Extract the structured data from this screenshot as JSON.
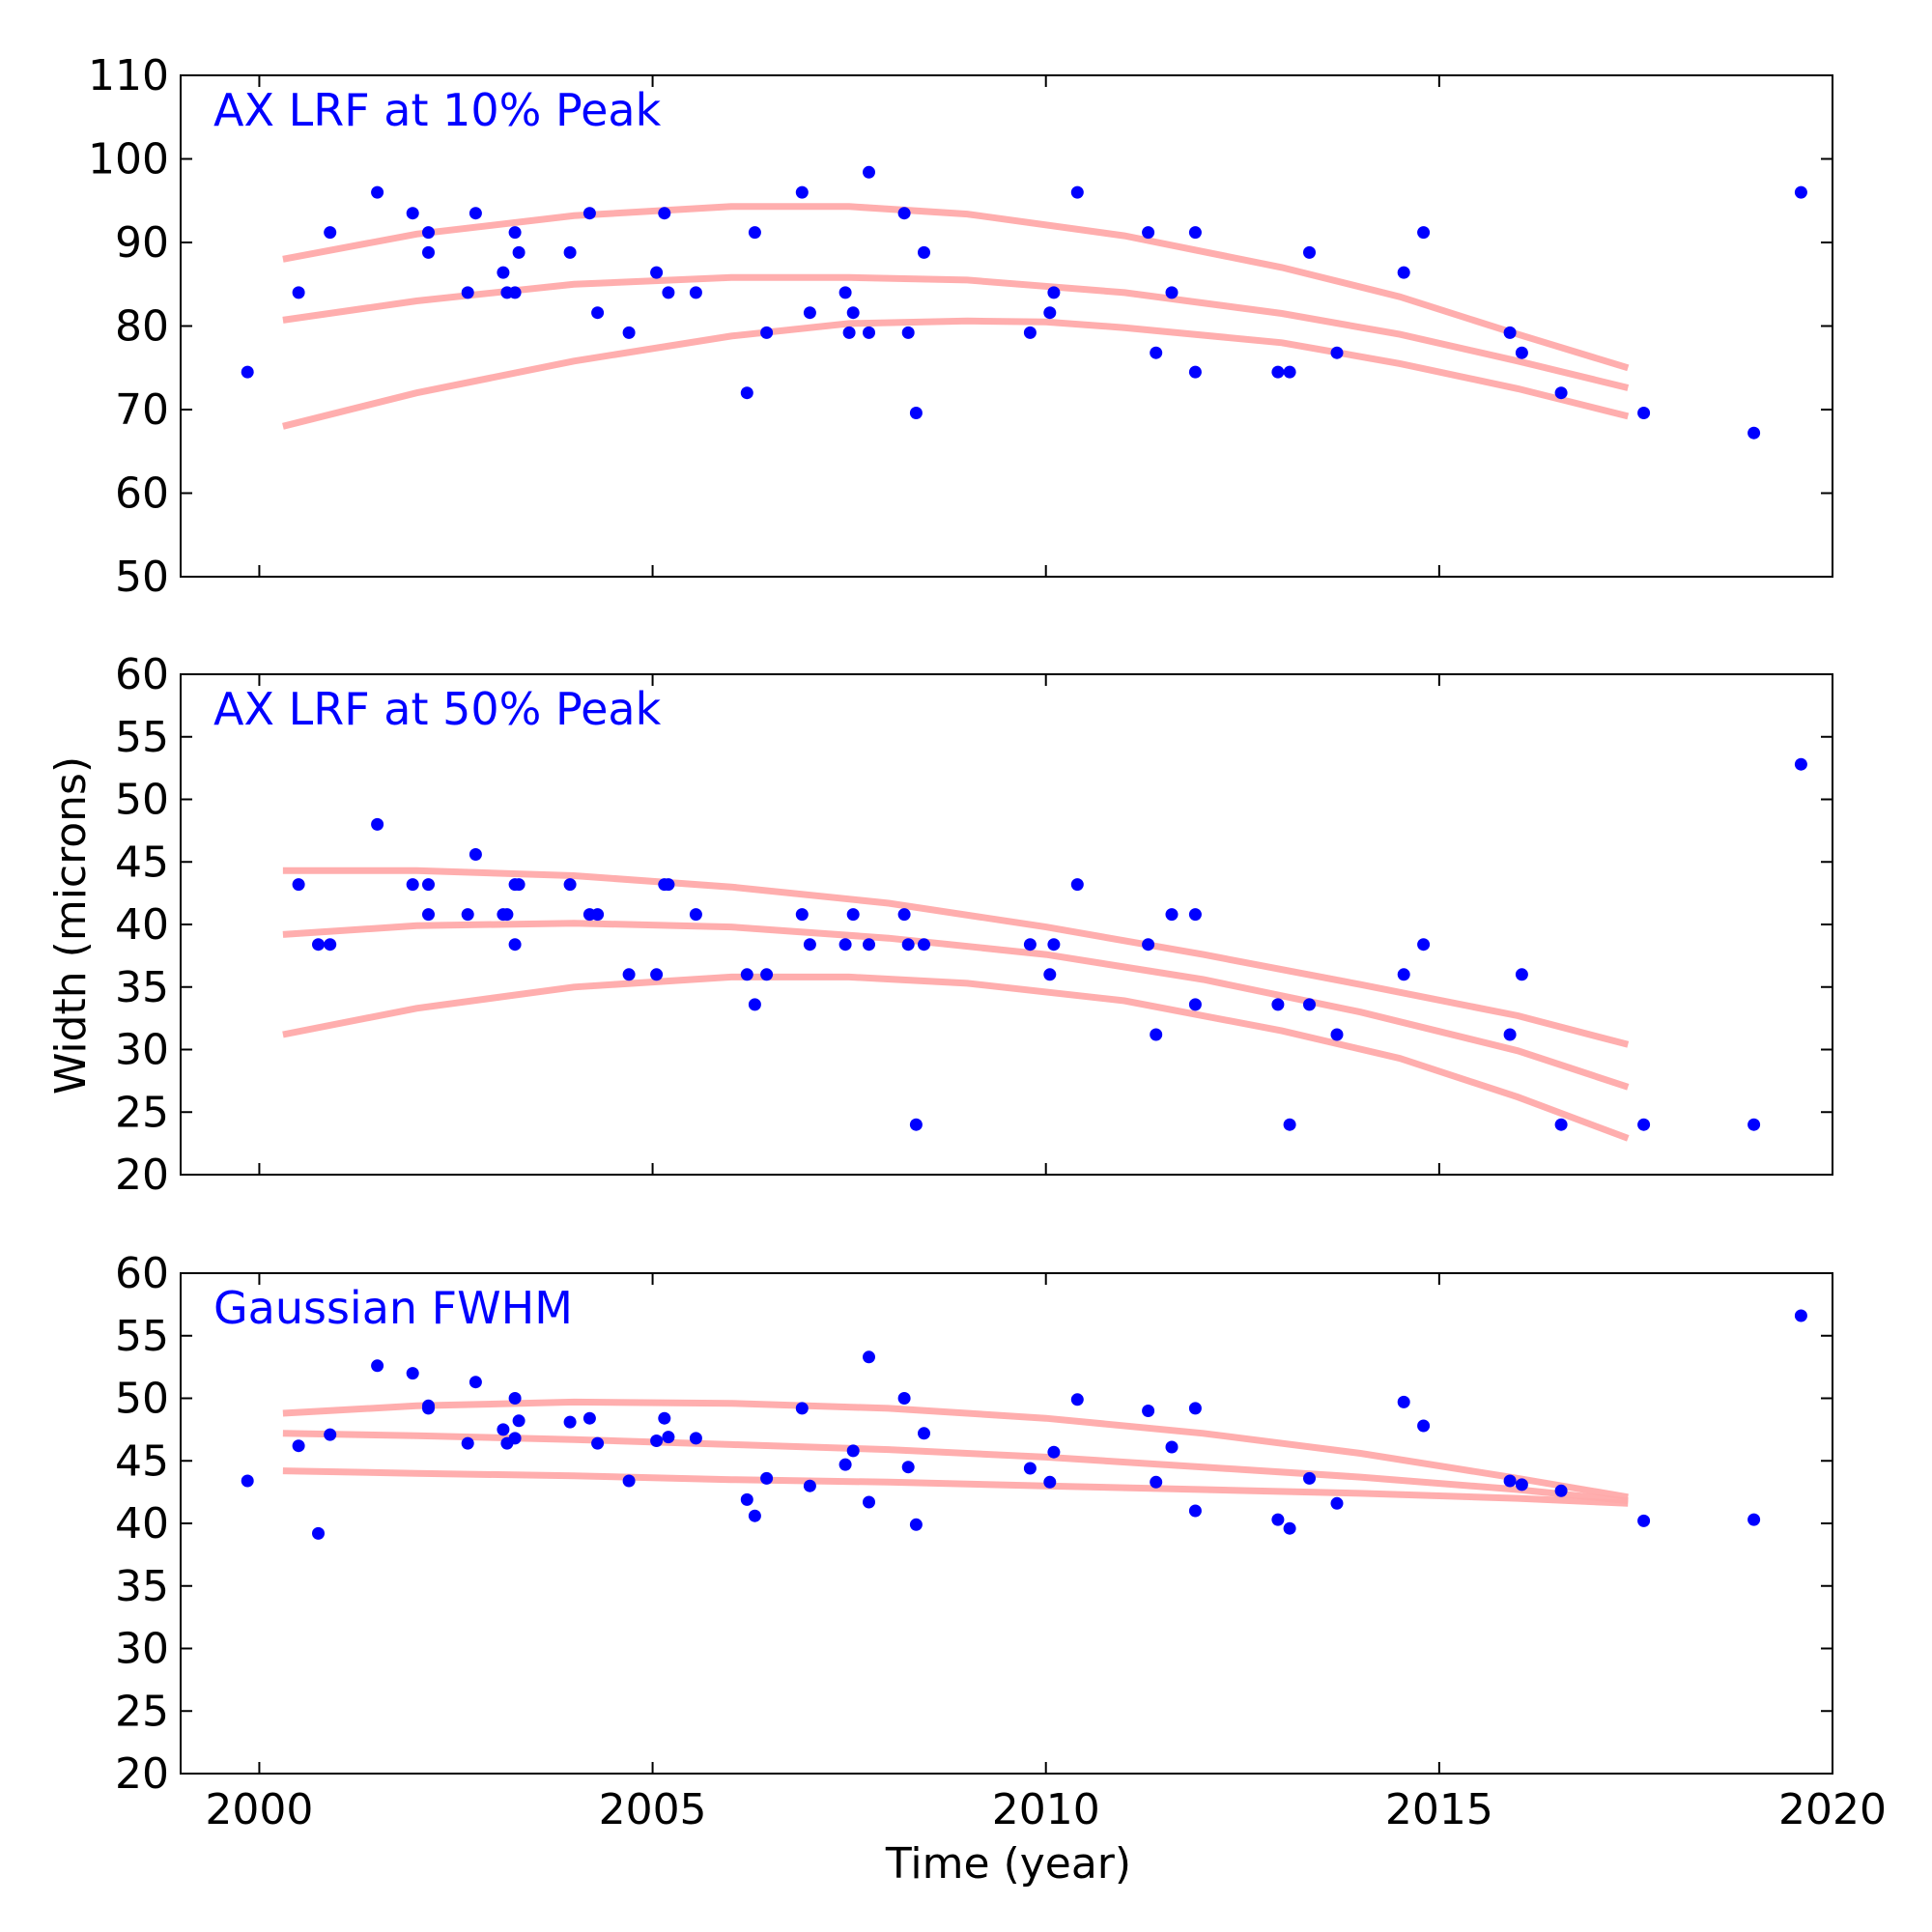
{
  "figure": {
    "xlabel": "Time (year)",
    "ylabel": "Width (microns)",
    "colors": {
      "points": "#0000ff",
      "trend": "#ffaaaa",
      "title": "#0000ff"
    }
  },
  "chart_data": [
    {
      "type": "scatter",
      "title": "AX LRF at 10% Peak",
      "xlim": [
        1999,
        2020
      ],
      "ylim": [
        50,
        110
      ],
      "xticks": [
        2000,
        2005,
        2010,
        2015,
        2020
      ],
      "yticks": [
        50,
        60,
        70,
        80,
        90,
        100,
        110
      ],
      "points": [
        [
          1999.85,
          74.5
        ],
        [
          2000.5,
          84
        ],
        [
          2000.9,
          91.2
        ],
        [
          2001.5,
          96
        ],
        [
          2001.95,
          93.5
        ],
        [
          2002.15,
          91.2
        ],
        [
          2002.15,
          88.8
        ],
        [
          2002.65,
          84
        ],
        [
          2002.75,
          93.5
        ],
        [
          2003.1,
          86.4
        ],
        [
          2003.15,
          84
        ],
        [
          2003.25,
          84
        ],
        [
          2003.25,
          91.2
        ],
        [
          2003.3,
          88.8
        ],
        [
          2003.95,
          88.8
        ],
        [
          2004.2,
          93.5
        ],
        [
          2004.3,
          81.6
        ],
        [
          2004.7,
          79.2
        ],
        [
          2005.05,
          86.4
        ],
        [
          2005.15,
          93.5
        ],
        [
          2005.2,
          84
        ],
        [
          2005.55,
          84
        ],
        [
          2006.2,
          72
        ],
        [
          2006.3,
          91.2
        ],
        [
          2006.45,
          79.2
        ],
        [
          2006.9,
          96
        ],
        [
          2007.0,
          81.6
        ],
        [
          2007.45,
          84
        ],
        [
          2007.5,
          79.2
        ],
        [
          2007.55,
          81.6
        ],
        [
          2007.75,
          79.2
        ],
        [
          2007.75,
          98.4
        ],
        [
          2008.2,
          93.5
        ],
        [
          2008.25,
          79.2
        ],
        [
          2008.35,
          69.6
        ],
        [
          2008.45,
          88.8
        ],
        [
          2009.8,
          79.2
        ],
        [
          2010.05,
          81.6
        ],
        [
          2010.1,
          84
        ],
        [
          2010.4,
          96
        ],
        [
          2011.3,
          91.2
        ],
        [
          2011.4,
          76.8
        ],
        [
          2011.6,
          84
        ],
        [
          2011.9,
          91.2
        ],
        [
          2011.9,
          74.5
        ],
        [
          2012.95,
          74.5
        ],
        [
          2013.1,
          74.5
        ],
        [
          2013.35,
          88.8
        ],
        [
          2013.7,
          76.8
        ],
        [
          2014.55,
          86.4
        ],
        [
          2014.8,
          91.2
        ],
        [
          2015.9,
          79.2
        ],
        [
          2016.05,
          76.8
        ],
        [
          2016.55,
          72
        ],
        [
          2017.6,
          69.6
        ],
        [
          2019.0,
          67.2
        ],
        [
          2019.6,
          96
        ]
      ],
      "trend_lines": [
        {
          "x": [
            2000.3,
            2002,
            2004,
            2006,
            2007.5,
            2009,
            2011,
            2013,
            2014.5,
            2016,
            2017.4
          ],
          "y": [
            88.0,
            91.0,
            93.2,
            94.3,
            94.3,
            93.4,
            90.8,
            87.0,
            83.5,
            79.0,
            75.0
          ]
        },
        {
          "x": [
            2000.3,
            2002,
            2004,
            2006,
            2007.5,
            2009,
            2011,
            2013,
            2014.5,
            2016,
            2017.4
          ],
          "y": [
            80.7,
            83.0,
            85.0,
            85.8,
            85.8,
            85.5,
            84.0,
            81.5,
            79.0,
            75.8,
            72.6
          ]
        },
        {
          "x": [
            2000.3,
            2002,
            2004,
            2006,
            2007.5,
            2009,
            2010,
            2011,
            2013,
            2014.5,
            2016,
            2017.4
          ],
          "y": [
            68.0,
            72.0,
            75.8,
            78.8,
            80.3,
            80.6,
            80.5,
            79.8,
            78.0,
            75.5,
            72.5,
            69.2
          ]
        }
      ]
    },
    {
      "type": "scatter",
      "title": "AX LRF at 50% Peak",
      "xlim": [
        1999,
        2020
      ],
      "ylim": [
        20,
        60
      ],
      "xticks": [
        2000,
        2005,
        2010,
        2015,
        2020
      ],
      "yticks": [
        20,
        25,
        30,
        35,
        40,
        45,
        50,
        55,
        60
      ],
      "points": [
        [
          2000.5,
          43.2
        ],
        [
          2000.75,
          38.4
        ],
        [
          2000.9,
          38.4
        ],
        [
          2001.5,
          48
        ],
        [
          2001.95,
          43.2
        ],
        [
          2002.15,
          43.2
        ],
        [
          2002.15,
          40.8
        ],
        [
          2002.65,
          40.8
        ],
        [
          2002.75,
          45.6
        ],
        [
          2003.1,
          40.8
        ],
        [
          2003.15,
          40.8
        ],
        [
          2003.25,
          43.2
        ],
        [
          2003.25,
          38.4
        ],
        [
          2003.3,
          43.2
        ],
        [
          2003.95,
          43.2
        ],
        [
          2004.2,
          40.8
        ],
        [
          2004.3,
          40.8
        ],
        [
          2004.7,
          36
        ],
        [
          2005.05,
          36
        ],
        [
          2005.15,
          43.2
        ],
        [
          2005.2,
          43.2
        ],
        [
          2005.55,
          40.8
        ],
        [
          2006.2,
          36
        ],
        [
          2006.3,
          33.6
        ],
        [
          2006.45,
          36
        ],
        [
          2006.9,
          40.8
        ],
        [
          2007.0,
          38.4
        ],
        [
          2007.45,
          38.4
        ],
        [
          2007.55,
          40.8
        ],
        [
          2007.75,
          38.4
        ],
        [
          2008.2,
          40.8
        ],
        [
          2008.25,
          38.4
        ],
        [
          2008.35,
          24
        ],
        [
          2008.45,
          38.4
        ],
        [
          2009.8,
          38.4
        ],
        [
          2010.05,
          36
        ],
        [
          2010.1,
          38.4
        ],
        [
          2010.4,
          43.2
        ],
        [
          2011.3,
          38.4
        ],
        [
          2011.4,
          31.2
        ],
        [
          2011.6,
          40.8
        ],
        [
          2011.9,
          40.8
        ],
        [
          2011.9,
          33.6
        ],
        [
          2012.95,
          33.6
        ],
        [
          2013.1,
          24
        ],
        [
          2013.35,
          33.6
        ],
        [
          2013.7,
          31.2
        ],
        [
          2014.55,
          36
        ],
        [
          2014.8,
          38.4
        ],
        [
          2015.9,
          31.2
        ],
        [
          2016.05,
          36
        ],
        [
          2016.55,
          24
        ],
        [
          2017.6,
          24
        ],
        [
          2019.0,
          24
        ],
        [
          2019.6,
          52.8
        ]
      ],
      "trend_lines": [
        {
          "x": [
            2000.3,
            2002,
            2004,
            2006,
            2008,
            2010,
            2012,
            2014,
            2016,
            2017.4
          ],
          "y": [
            44.3,
            44.3,
            43.9,
            43.0,
            41.7,
            39.8,
            37.6,
            35.2,
            32.7,
            30.4
          ]
        },
        {
          "x": [
            2000.3,
            2002,
            2004,
            2006,
            2008,
            2010,
            2012,
            2014,
            2016,
            2017.4
          ],
          "y": [
            39.2,
            39.9,
            40.1,
            39.8,
            38.9,
            37.6,
            35.6,
            33.0,
            29.9,
            27.0
          ]
        },
        {
          "x": [
            2000.3,
            2002,
            2004,
            2006,
            2007.5,
            2009,
            2011,
            2013,
            2014.5,
            2016,
            2017.4
          ],
          "y": [
            31.2,
            33.3,
            35.0,
            35.8,
            35.8,
            35.3,
            33.9,
            31.5,
            29.3,
            26.2,
            22.9
          ]
        }
      ]
    },
    {
      "type": "scatter",
      "title": "Gaussian FWHM",
      "xlim": [
        1999,
        2020
      ],
      "ylim": [
        20,
        60
      ],
      "xticks": [
        2000,
        2005,
        2010,
        2015,
        2020
      ],
      "yticks": [
        20,
        25,
        30,
        35,
        40,
        45,
        50,
        55,
        60
      ],
      "points": [
        [
          1999.85,
          43.4
        ],
        [
          2000.5,
          46.2
        ],
        [
          2000.75,
          39.2
        ],
        [
          2000.9,
          47.1
        ],
        [
          2001.5,
          52.6
        ],
        [
          2001.95,
          52
        ],
        [
          2002.15,
          49.2
        ],
        [
          2002.15,
          49.4
        ],
        [
          2002.65,
          46.4
        ],
        [
          2002.75,
          51.3
        ],
        [
          2003.1,
          47.5
        ],
        [
          2003.15,
          46.4
        ],
        [
          2003.25,
          46.8
        ],
        [
          2003.25,
          50
        ],
        [
          2003.3,
          48.2
        ],
        [
          2003.95,
          48.1
        ],
        [
          2004.2,
          48.4
        ],
        [
          2004.3,
          46.4
        ],
        [
          2004.7,
          43.4
        ],
        [
          2005.05,
          46.6
        ],
        [
          2005.15,
          48.4
        ],
        [
          2005.2,
          46.9
        ],
        [
          2005.55,
          46.8
        ],
        [
          2006.2,
          41.9
        ],
        [
          2006.3,
          40.6
        ],
        [
          2006.45,
          43.6
        ],
        [
          2006.9,
          49.2
        ],
        [
          2007.0,
          43
        ],
        [
          2007.45,
          44.7
        ],
        [
          2007.55,
          45.8
        ],
        [
          2007.75,
          41.7
        ],
        [
          2007.75,
          53.3
        ],
        [
          2008.2,
          50
        ],
        [
          2008.25,
          44.5
        ],
        [
          2008.35,
          39.9
        ],
        [
          2008.45,
          47.2
        ],
        [
          2009.8,
          44.4
        ],
        [
          2010.05,
          43.3
        ],
        [
          2010.1,
          45.7
        ],
        [
          2010.4,
          49.9
        ],
        [
          2011.3,
          49
        ],
        [
          2011.4,
          43.3
        ],
        [
          2011.6,
          46.1
        ],
        [
          2011.9,
          49.2
        ],
        [
          2011.9,
          41
        ],
        [
          2012.95,
          40.3
        ],
        [
          2013.1,
          39.6
        ],
        [
          2013.35,
          43.6
        ],
        [
          2013.7,
          41.6
        ],
        [
          2014.55,
          49.7
        ],
        [
          2014.8,
          47.8
        ],
        [
          2015.9,
          43.4
        ],
        [
          2016.05,
          43.1
        ],
        [
          2016.55,
          42.6
        ],
        [
          2017.6,
          40.2
        ],
        [
          2019.0,
          40.3
        ],
        [
          2019.6,
          56.6
        ]
      ],
      "trend_lines": [
        {
          "x": [
            2000.3,
            2002,
            2004,
            2006,
            2008,
            2010,
            2012,
            2014,
            2016,
            2017.4
          ],
          "y": [
            48.8,
            49.4,
            49.7,
            49.6,
            49.2,
            48.4,
            47.2,
            45.6,
            43.6,
            42.1
          ]
        },
        {
          "x": [
            2000.3,
            2002,
            2004,
            2006,
            2008,
            2010,
            2012,
            2014,
            2016,
            2017.4
          ],
          "y": [
            47.2,
            47.0,
            46.7,
            46.3,
            45.9,
            45.3,
            44.5,
            43.7,
            42.7,
            41.8
          ]
        },
        {
          "x": [
            2000.3,
            2002,
            2004,
            2006,
            2008,
            2010,
            2012,
            2014,
            2016,
            2017.4
          ],
          "y": [
            44.2,
            44.0,
            43.8,
            43.5,
            43.3,
            43.0,
            42.7,
            42.4,
            42.0,
            41.6
          ]
        }
      ]
    }
  ]
}
